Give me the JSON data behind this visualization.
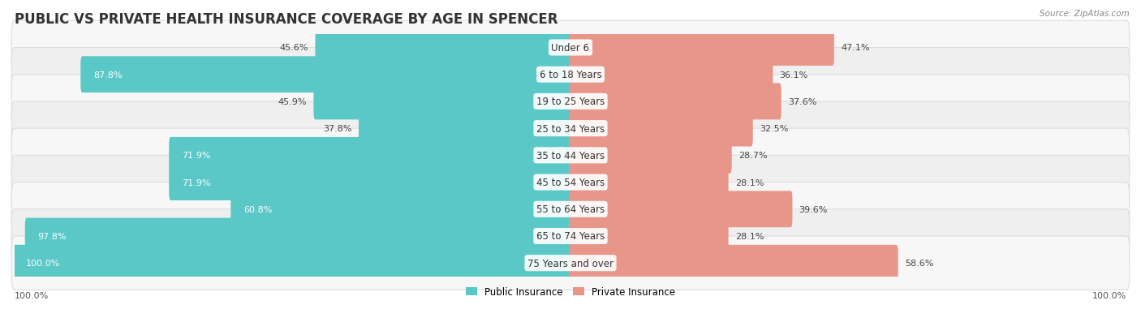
{
  "title": "PUBLIC VS PRIVATE HEALTH INSURANCE COVERAGE BY AGE IN SPENCER",
  "source": "Source: ZipAtlas.com",
  "categories": [
    "Under 6",
    "6 to 18 Years",
    "19 to 25 Years",
    "25 to 34 Years",
    "35 to 44 Years",
    "45 to 54 Years",
    "55 to 64 Years",
    "65 to 74 Years",
    "75 Years and over"
  ],
  "public_values": [
    45.6,
    87.8,
    45.9,
    37.8,
    71.9,
    71.9,
    60.8,
    97.8,
    100.0
  ],
  "private_values": [
    47.1,
    36.1,
    37.6,
    32.5,
    28.7,
    28.1,
    39.6,
    28.1,
    58.6
  ],
  "public_color": "#5BC8C8",
  "private_color": "#E8958A",
  "row_bg_colors": [
    "#F7F7F7",
    "#EFEFEF"
  ],
  "title_fontsize": 12,
  "label_fontsize": 8.5,
  "value_fontsize": 8,
  "legend_fontsize": 8.5,
  "source_fontsize": 7.5
}
